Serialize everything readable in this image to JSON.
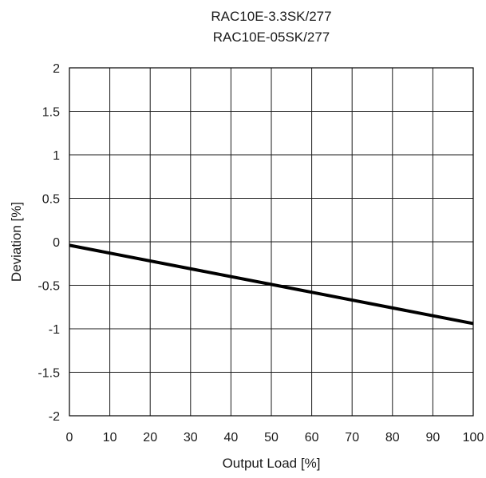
{
  "chart_data": {
    "type": "line",
    "title_lines": [
      "RAC10E-3.3SK/277",
      "RAC10E-05SK/277"
    ],
    "xlabel": "Output Load [%]",
    "ylabel": "Deviation [%]",
    "xlim": [
      0,
      100
    ],
    "ylim": [
      -2,
      2
    ],
    "x_ticks": [
      0,
      10,
      20,
      30,
      40,
      50,
      60,
      70,
      80,
      90,
      100
    ],
    "y_ticks": [
      2,
      1.5,
      1,
      0.5,
      0,
      -0.5,
      -1,
      -1.5,
      -2
    ],
    "x_tick_labels": [
      "0",
      "10",
      "20",
      "30",
      "40",
      "50",
      "60",
      "70",
      "80",
      "90",
      "100"
    ],
    "y_tick_labels": [
      "2",
      "1.5",
      "1",
      "0.5",
      "0",
      "-0.5",
      "-1",
      "-1.5",
      "-2"
    ],
    "grid": true,
    "series": [
      {
        "x": [
          0,
          100
        ],
        "y": [
          -0.04,
          -0.94
        ],
        "color": "#000000"
      }
    ]
  }
}
